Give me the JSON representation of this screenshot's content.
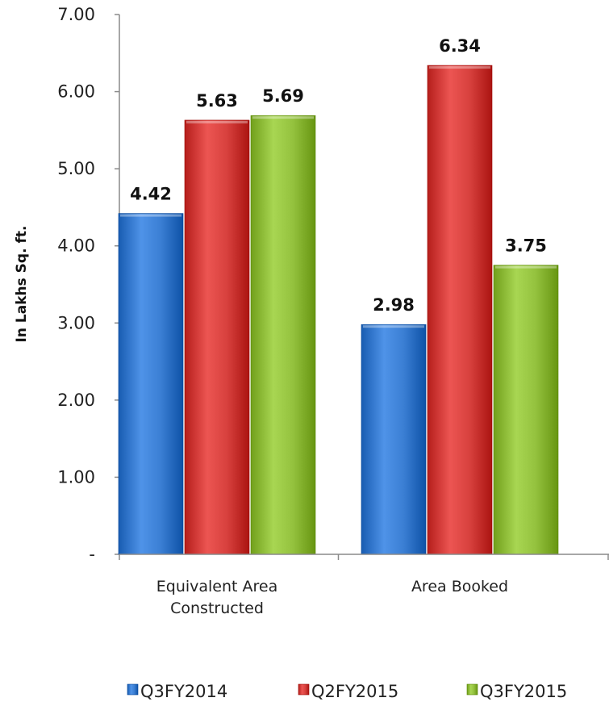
{
  "chart_data": {
    "type": "bar",
    "ylabel": "In Lakhs Sq. ft.",
    "categories": [
      "Equivalent Area Constructed",
      "Area Booked"
    ],
    "category_lines": [
      [
        "Equivalent Area",
        "Constructed"
      ],
      [
        "Area Booked"
      ]
    ],
    "series": [
      {
        "name": "Q3FY2014",
        "values": [
          4.42,
          2.98
        ],
        "labels": [
          "4.42",
          "2.98"
        ],
        "color": "#3b7fd4"
      },
      {
        "name": "Q2FY2015",
        "values": [
          5.63,
          6.34
        ],
        "labels": [
          "5.63",
          "6.34"
        ],
        "color": "#d8413e"
      },
      {
        "name": "Q3FY2015",
        "values": [
          5.69,
          3.75
        ],
        "labels": [
          "5.69",
          "3.75"
        ],
        "color": "#94c23e"
      }
    ],
    "ylim": [
      0,
      7
    ],
    "yticks": [
      0,
      1,
      2,
      3,
      4,
      5,
      6,
      7
    ],
    "ytick_labels": [
      "-",
      "1.00",
      "2.00",
      "3.00",
      "4.00",
      "5.00",
      "6.00",
      "7.00"
    ],
    "legend_position": "bottom",
    "grid": false
  }
}
